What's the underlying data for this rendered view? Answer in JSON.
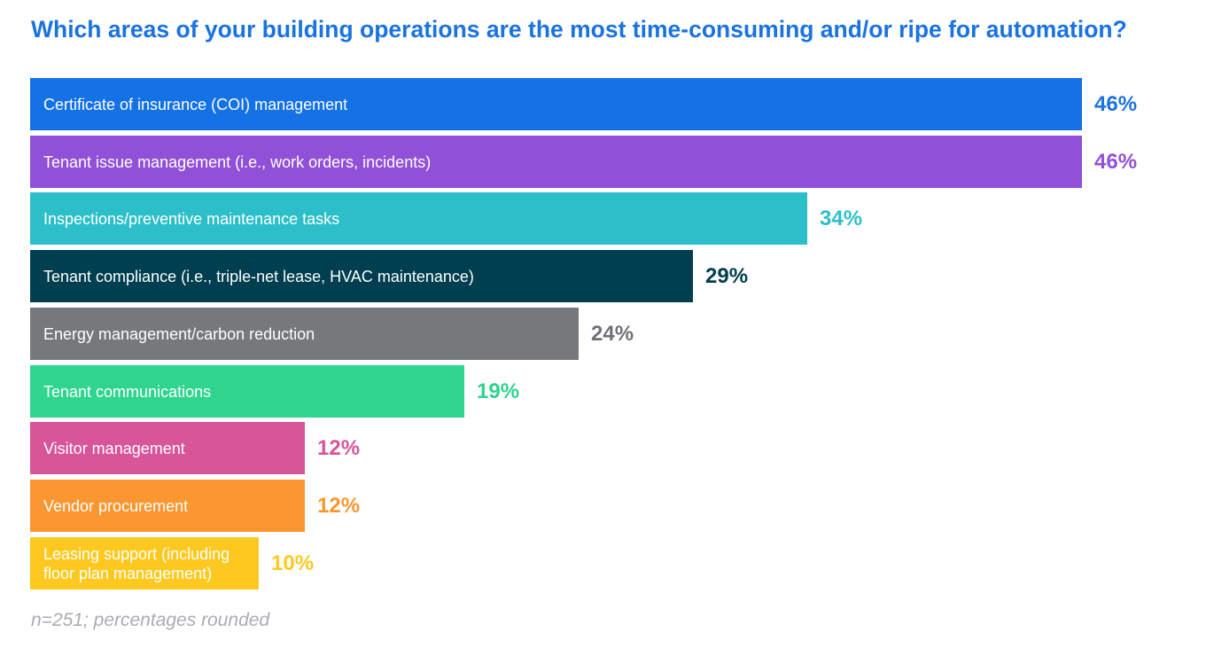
{
  "title": "Which areas of your building operations are the most time-consuming and/or ripe for automation?",
  "footnote": "n=251; percentages rounded",
  "chart_data": {
    "type": "bar",
    "orientation": "horizontal",
    "title": "Which areas of your building operations are the most time-consuming and/or ripe for automation?",
    "categories": [
      "Certificate of insurance (COI) management",
      "Tenant issue management (i.e., work orders, incidents)",
      "Inspections/preventive maintenance tasks",
      "Tenant compliance (i.e., triple-net lease, HVAC maintenance)",
      "Energy management/carbon reduction",
      "Tenant communications",
      "Visitor management",
      "Vendor procurement",
      "Leasing support (including\nfloor plan management)"
    ],
    "values": [
      46,
      46,
      34,
      29,
      24,
      19,
      12,
      12,
      10
    ],
    "value_labels": [
      "46%",
      "46%",
      "34%",
      "29%",
      "24%",
      "19%",
      "12%",
      "12%",
      "10%"
    ],
    "colors": [
      "#1471e6",
      "#9150d8",
      "#2dbfc9",
      "#003f4f",
      "#76797c",
      "#2fd48e",
      "#d8559a",
      "#fb9631",
      "#fdc921"
    ],
    "label_colors": [
      "#1a73e0",
      "#9150d8",
      "#2dbfc9",
      "#003f4f",
      "#6f7275",
      "#2fd48e",
      "#d8559a",
      "#fb9631",
      "#fdc921"
    ],
    "xlim": [
      0,
      46
    ],
    "grid": false,
    "legend": "none"
  }
}
